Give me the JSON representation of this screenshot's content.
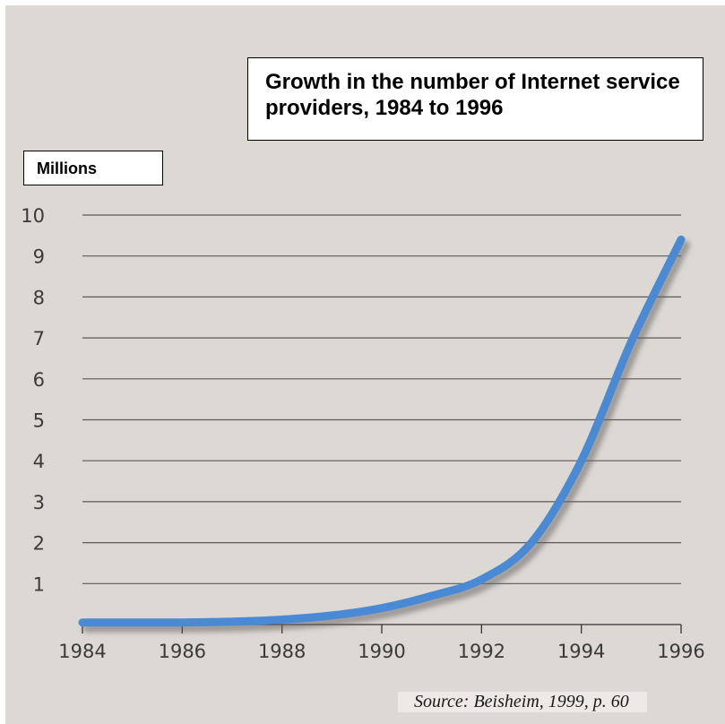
{
  "chart_data": {
    "type": "line",
    "title": "Growth in the number of Internet service providers, 1984 to 1996",
    "ylabel": "Millions",
    "xlabel": "",
    "x": [
      1984,
      1985,
      1986,
      1987,
      1988,
      1989,
      1990,
      1991,
      1992,
      1993,
      1994,
      1995,
      1996
    ],
    "series": [
      {
        "values": [
          0.05,
          0.05,
          0.05,
          0.07,
          0.12,
          0.22,
          0.4,
          0.7,
          1.1,
          2.0,
          4.0,
          6.9,
          9.4
        ]
      }
    ],
    "xlim": [
      1984,
      1996
    ],
    "ylim": [
      0,
      10
    ],
    "x_ticks": [
      1984,
      1986,
      1988,
      1990,
      1992,
      1994,
      1996
    ],
    "y_ticks": [
      1,
      2,
      3,
      4,
      5,
      6,
      7,
      8,
      9,
      10
    ],
    "grid": "horizontal",
    "colors": {
      "line": "#4a8ad4",
      "background": "#dcd8d4",
      "grid": "#5a5a5a"
    }
  },
  "source": "Source: Beisheim, 1999, p. 60"
}
